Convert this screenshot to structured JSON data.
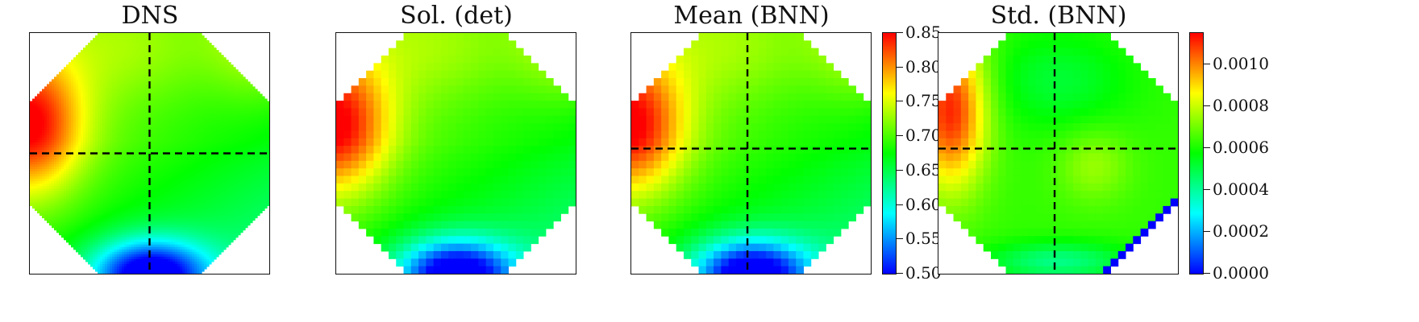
{
  "colors": {
    "colormap": [
      "#0000ff",
      "#00ffff",
      "#00ff00",
      "#ffff00",
      "#ff0000"
    ],
    "crosshair": "#000000",
    "masked_cell": "#0000ff"
  },
  "chart_data": [
    {
      "type": "heatmap",
      "title": "DNS",
      "field": "smooth",
      "domain": "octagon",
      "crosshair": {
        "x": 0.5,
        "y": 0.5
      },
      "colorbar": false,
      "value_range": [
        0.5,
        0.85
      ]
    },
    {
      "type": "heatmap",
      "title": "Sol. (det)",
      "field": "pixelated",
      "grid": [
        32,
        32
      ],
      "domain": "octagon",
      "crosshair": null,
      "colorbar": false,
      "value_range": [
        0.5,
        0.85
      ]
    },
    {
      "type": "heatmap",
      "title": "Mean (BNN)",
      "field": "pixelated",
      "grid": [
        32,
        32
      ],
      "domain": "octagon",
      "crosshair": {
        "x": 0.485,
        "y": 0.48
      },
      "colorbar": true,
      "value_range": [
        0.5,
        0.85
      ],
      "colorbar_ticks": [
        "0.50",
        "0.55",
        "0.60",
        "0.65",
        "0.70",
        "0.75",
        "0.80",
        "0.85"
      ],
      "colorbar_tick_values": [
        0.5,
        0.55,
        0.6,
        0.65,
        0.7,
        0.75,
        0.8,
        0.85
      ]
    },
    {
      "type": "heatmap",
      "title": "Std. (BNN)",
      "field": "pixelated",
      "grid": [
        32,
        32
      ],
      "domain": "octagon",
      "crosshair": {
        "x": 0.485,
        "y": 0.48
      },
      "colorbar": true,
      "value_range": [
        0.0,
        0.00115
      ],
      "colorbar_ticks": [
        "0.0000",
        "0.0002",
        "0.0004",
        "0.0006",
        "0.0008",
        "0.0010"
      ],
      "colorbar_tick_values": [
        0.0,
        0.0002,
        0.0004,
        0.0006,
        0.0008,
        0.001
      ]
    }
  ]
}
